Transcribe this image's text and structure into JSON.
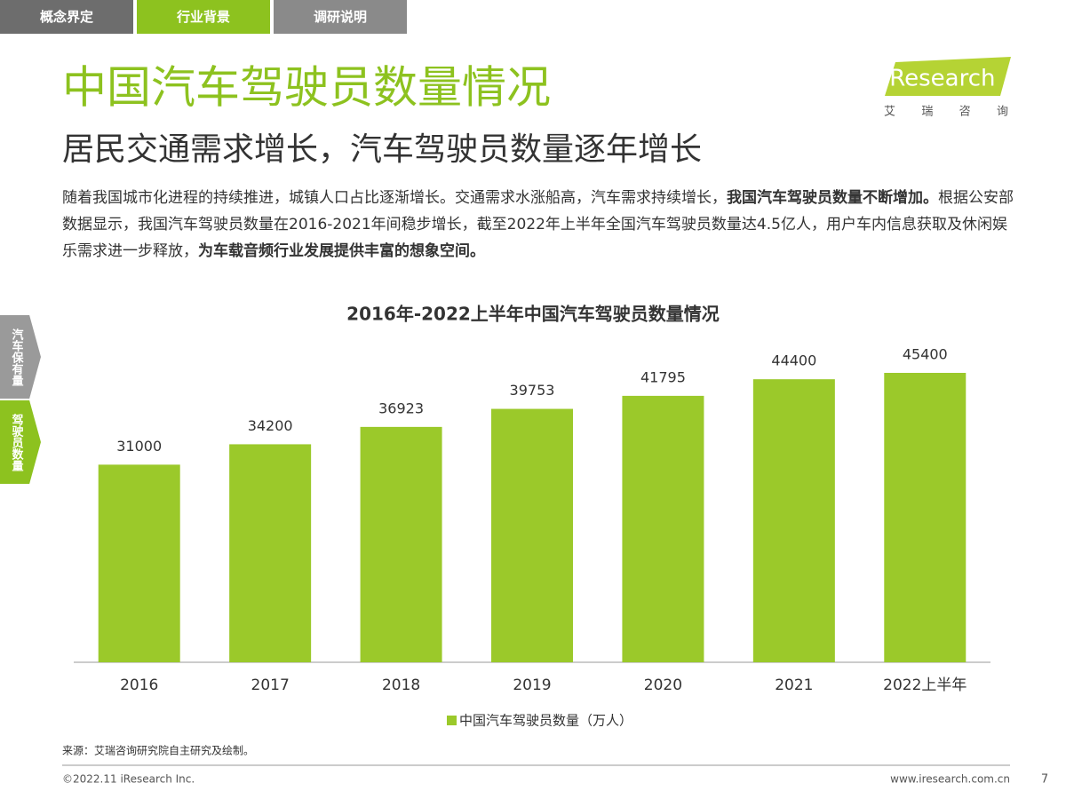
{
  "tabs": [
    "概念界定",
    "行业背景",
    "调研说明"
  ],
  "side_tabs": [
    "汽车保有量",
    "驾驶员数量"
  ],
  "logo": {
    "name": "iResearch",
    "subtitle": "艾 瑞 咨 询"
  },
  "header": {
    "title": "中国汽车驾驶员数量情况",
    "subtitle": "居民交通需求增长，汽车驾驶员数量逐年增长"
  },
  "body": {
    "segments": [
      {
        "text": "随着我国城市化进程的持续推进，城镇人口占比逐渐增长。交通需求水涨船高，汽车需求持续增长，",
        "bold": false
      },
      {
        "text": "我国汽车驾驶员数量不断增加。",
        "bold": true
      },
      {
        "text": "根据公安部数据显示，我国汽车驾驶员数量在2016-2021年间稳步增长，截至2022年上半年全国汽车驾驶员数量达4.5亿人，用户车内信息获取及休闲娱乐需求进一步释放，",
        "bold": false
      },
      {
        "text": "为车载音频行业发展提供丰富的想象空间。",
        "bold": true
      }
    ]
  },
  "chart_data": {
    "type": "bar",
    "title": "2016年-2022上半年中国汽车驾驶员数量情况",
    "categories": [
      "2016",
      "2017",
      "2018",
      "2019",
      "2020",
      "2021",
      "2022上半年"
    ],
    "series": [
      {
        "name": "中国汽车驾驶员数量（万人）",
        "color": "#9bc92a",
        "values": [
          31000,
          34200,
          36923,
          39753,
          41795,
          44400,
          45400
        ]
      }
    ]
  },
  "footer": {
    "source": "来源：艾瑞咨询研究院自主研究及绘制。",
    "copyright": "©2022.11 iResearch Inc.",
    "website": "www.iresearch.com.cn",
    "page": "7"
  }
}
